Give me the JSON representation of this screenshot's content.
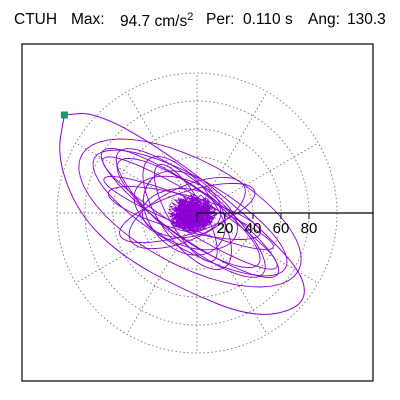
{
  "header": {
    "station": "CTUH",
    "max_label": "Max:",
    "max_value": "94.7 cm/s",
    "max_exp": "2",
    "per_label": "Per:",
    "per_value": "0.110 s",
    "ang_label": "Ang:",
    "ang_value": "130.3"
  },
  "chart_data": {
    "type": "polar-orbit",
    "title": "CTUH",
    "max_value": 94.7,
    "max_unit": "cm/s2",
    "period_s": 0.11,
    "angle_deg": 130.3,
    "radial_ticks": [
      "20",
      "40",
      "60",
      "80"
    ],
    "radial_tick_values": [
      20,
      40,
      60,
      80
    ],
    "rlim": [
      0,
      100
    ],
    "angular_grid_step_deg": 30,
    "grid": true,
    "trace_color": "#8c00d4",
    "marker_color": "#0f9a72",
    "outer_orbit_points": [
      [
        -94.7,
        70
      ],
      [
        -100,
        40
      ],
      [
        -85,
        0
      ],
      [
        -55,
        -30
      ],
      [
        -10,
        -55
      ],
      [
        40,
        -75
      ],
      [
        75,
        -68
      ],
      [
        78,
        -48
      ],
      [
        55,
        -20
      ],
      [
        10,
        20
      ],
      [
        -40,
        55
      ],
      [
        -75,
        72
      ],
      [
        -94.7,
        70
      ]
    ],
    "orbit_axes": [
      [
        78,
        30,
        28,
        0.5
      ],
      [
        55,
        14,
        36,
        0.6
      ],
      [
        70,
        20,
        30,
        0.5
      ],
      [
        45,
        12,
        -18,
        0.7
      ],
      [
        60,
        16,
        40,
        0.45
      ],
      [
        35,
        18,
        25,
        0.8
      ],
      [
        50,
        10,
        15,
        0.9
      ],
      [
        40,
        15,
        -25,
        0.7
      ],
      [
        65,
        10,
        32,
        0.5
      ],
      [
        30,
        20,
        48,
        0.9
      ],
      [
        58,
        8,
        22,
        0.6
      ],
      [
        25,
        14,
        0,
        1.1
      ],
      [
        42,
        16,
        55,
        0.7
      ],
      [
        68,
        14,
        35,
        0.5
      ],
      [
        35,
        10,
        60,
        0.8
      ]
    ],
    "core_scatter_radius": 14
  }
}
